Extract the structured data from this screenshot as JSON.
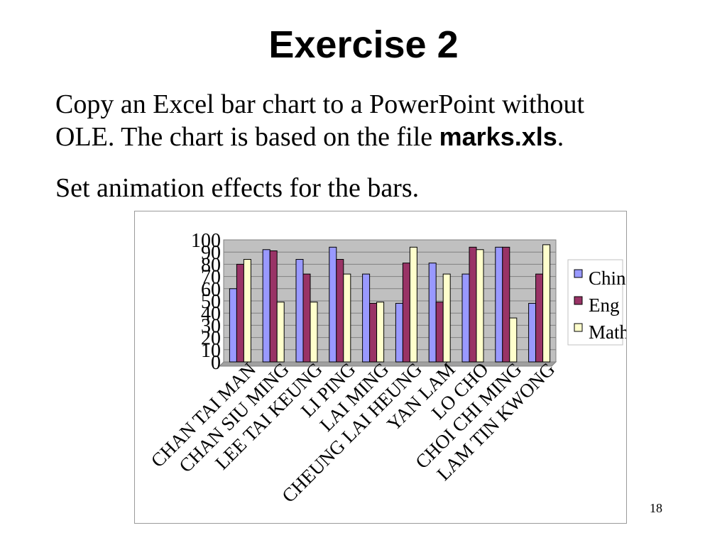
{
  "slide": {
    "title": "Exercise 2",
    "line1": "Copy an Excel bar chart to a PowerPoint without",
    "line2_prefix": "OLE. The chart is based on the file ",
    "line2_file": "marks.xls",
    "line2_suffix": ".",
    "line3": "Set animation effects for the bars.",
    "page_number": "18"
  },
  "chart_data": {
    "type": "bar",
    "categories": [
      "CHAN TAI MAN",
      "CHAN SIU MING",
      "LEE TAI KEUNG",
      "LI PING",
      "LAI MING",
      "CHEUNG LAI HEUNG",
      "YAN LAM",
      "LO CHO",
      "CHOI CHI MING",
      "LAM TIN KWONG"
    ],
    "series": [
      {
        "name": "Chin",
        "color": "#9999ff",
        "values": [
          60,
          92,
          84,
          94,
          72,
          48,
          81,
          72,
          94,
          48
        ]
      },
      {
        "name": "Eng",
        "color": "#993366",
        "values": [
          80,
          91,
          72,
          84,
          48,
          81,
          49,
          94,
          94,
          72
        ]
      },
      {
        "name": "Math",
        "color": "#ffffcc",
        "values": [
          84,
          49,
          49,
          72,
          49,
          94,
          72,
          92,
          36,
          96
        ]
      }
    ],
    "y_ticks": [
      "0",
      "10",
      "20",
      "30",
      "40",
      "50",
      "60",
      "70",
      "80",
      "90",
      "100"
    ],
    "ylim": [
      0,
      100
    ],
    "grid": true,
    "plot_background": "#c0c0c0",
    "legend_position": "right"
  }
}
